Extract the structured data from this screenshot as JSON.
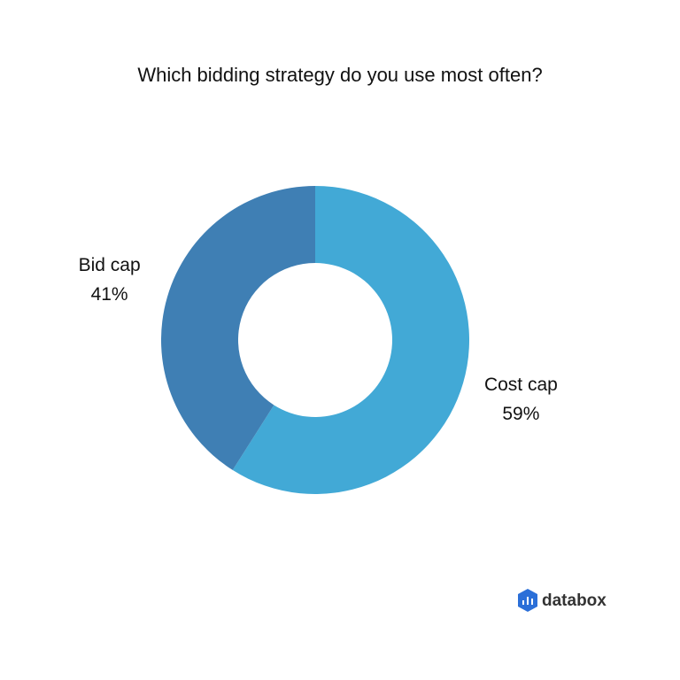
{
  "chart_data": {
    "type": "donut",
    "title": "Which bidding strategy do you use most often?",
    "categories": [
      "Cost cap",
      "Bid cap"
    ],
    "values": [
      59,
      41
    ],
    "value_labels": [
      "59%",
      "41%"
    ],
    "colors": [
      "#42a9d6",
      "#3f7fb4"
    ]
  },
  "brand": "databox"
}
